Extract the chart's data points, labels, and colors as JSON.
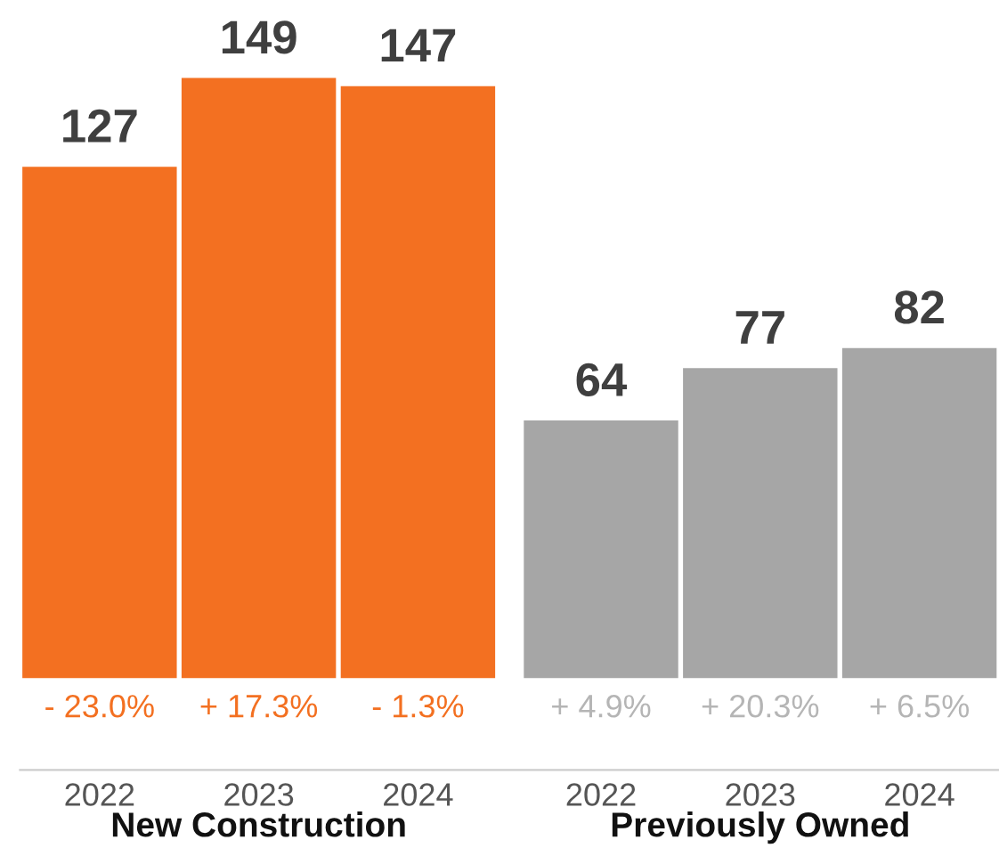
{
  "chart_data": {
    "type": "bar",
    "categories": [
      "2022",
      "2023",
      "2024",
      "2022",
      "2023",
      "2024"
    ],
    "values": [
      127,
      149,
      147,
      64,
      77,
      82
    ],
    "colors": [
      "#f37021",
      "#f37021",
      "#f37021",
      "#a6a6a6",
      "#a6a6a6",
      "#a6a6a6"
    ],
    "data_labels": true,
    "annotations": [
      "- 23.0%",
      "+ 17.3%",
      "- 1.3%",
      "+ 4.9%",
      "+ 20.3%",
      "+ 6.5%",
      "New Construction",
      "Previously Owned"
    ],
    "grid": false,
    "legend": false
  }
}
